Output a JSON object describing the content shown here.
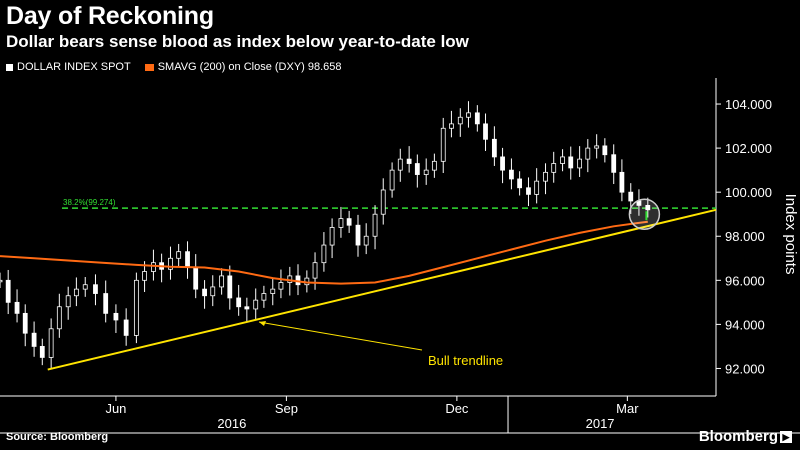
{
  "title": "Day of Reckoning",
  "subtitle": "Dollar bears sense blood as index below year-to-date low",
  "legend": [
    {
      "label": "DOLLAR INDEX SPOT",
      "color": "#ffffff"
    },
    {
      "label": "SMAVG (200) on Close (DXY) 98.658",
      "color": "#ff6a13"
    }
  ],
  "source": "Source: Bloomberg",
  "brand": "Bloomberg",
  "chart_data": {
    "type": "line",
    "ylabel": "Index points",
    "ylim": [
      90.75,
      105.0
    ],
    "y_ticks": [
      92,
      94,
      96,
      98,
      100,
      102,
      104
    ],
    "y_tick_labels": [
      "92.000",
      "94.000",
      "96.000",
      "98.000",
      "100.000",
      "102.000",
      "104.000"
    ],
    "x_range": [
      2016.25,
      2017.3
    ],
    "month_ticks": [
      {
        "label": "Jun",
        "x": 2016.42
      },
      {
        "label": "Sep",
        "x": 2016.67
      },
      {
        "label": "Dec",
        "x": 2016.92
      },
      {
        "label": "Mar",
        "x": 2017.17
      }
    ],
    "year_labels": [
      {
        "label": "2016",
        "x": 2016.59
      },
      {
        "label": "2017",
        "x": 2017.13
      }
    ],
    "series": [
      {
        "name": "DOLLAR INDEX SPOT",
        "color": "#ffffff",
        "style": "candles",
        "x": [
          2016.25,
          2016.262,
          2016.275,
          2016.287,
          2016.3,
          2016.312,
          2016.325,
          2016.337,
          2016.35,
          2016.362,
          2016.375,
          2016.39,
          2016.405,
          2016.42,
          2016.435,
          2016.45,
          2016.462,
          2016.475,
          2016.487,
          2016.5,
          2016.512,
          2016.525,
          2016.537,
          2016.55,
          2016.562,
          2016.575,
          2016.587,
          2016.6,
          2016.612,
          2016.625,
          2016.637,
          2016.65,
          2016.662,
          2016.675,
          2016.687,
          2016.7,
          2016.712,
          2016.725,
          2016.737,
          2016.75,
          2016.762,
          2016.775,
          2016.787,
          2016.8,
          2016.812,
          2016.825,
          2016.837,
          2016.85,
          2016.862,
          2016.875,
          2016.887,
          2016.9,
          2016.912,
          2016.925,
          2016.937,
          2016.95,
          2016.962,
          2016.975,
          2016.987,
          2017.0,
          2017.012,
          2017.025,
          2017.037,
          2017.05,
          2017.062,
          2017.075,
          2017.087,
          2017.1,
          2017.112,
          2017.125,
          2017.137,
          2017.15,
          2017.162,
          2017.175,
          2017.187,
          2017.2
        ],
        "values": [
          96.0,
          95.0,
          94.5,
          93.6,
          93.0,
          92.5,
          93.8,
          94.8,
          95.3,
          95.6,
          95.8,
          95.4,
          94.5,
          94.2,
          93.5,
          96.0,
          96.4,
          96.8,
          96.5,
          97.0,
          97.3,
          96.6,
          95.6,
          95.3,
          95.7,
          96.2,
          95.2,
          94.8,
          94.7,
          95.1,
          95.4,
          95.6,
          95.9,
          96.2,
          95.8,
          96.1,
          96.8,
          97.6,
          98.4,
          98.8,
          98.5,
          97.6,
          98.0,
          99.0,
          100.1,
          101.0,
          101.5,
          101.3,
          100.8,
          101.0,
          101.4,
          102.9,
          103.1,
          103.4,
          103.6,
          103.1,
          102.4,
          101.6,
          101.0,
          100.6,
          100.2,
          99.9,
          100.5,
          100.9,
          101.3,
          101.6,
          101.1,
          101.5,
          102.0,
          102.1,
          101.7,
          100.9,
          100.0,
          99.6,
          99.4,
          99.2
        ]
      },
      {
        "name": "SMAVG (200) on Close (DXY) 98.658",
        "color": "#ff6a13",
        "style": "line",
        "x": [
          2016.25,
          2016.3,
          2016.35,
          2016.4,
          2016.45,
          2016.5,
          2016.55,
          2016.6,
          2016.65,
          2016.7,
          2016.75,
          2016.8,
          2016.85,
          2016.9,
          2016.95,
          2017.0,
          2017.05,
          2017.1,
          2017.15,
          2017.2
        ],
        "values": [
          97.1,
          97.0,
          96.9,
          96.8,
          96.7,
          96.62,
          96.58,
          96.4,
          96.1,
          95.9,
          95.85,
          95.9,
          96.2,
          96.6,
          97.0,
          97.4,
          97.8,
          98.15,
          98.45,
          98.66
        ]
      }
    ],
    "annotations": [
      {
        "type": "hline",
        "y": 99.274,
        "label": "38.2%(99.274)",
        "color": "#33dd33",
        "style": "dashed"
      },
      {
        "type": "trendline",
        "x0": 2016.32,
        "y0": 91.95,
        "x1": 2017.3,
        "y1": 99.2,
        "color": "#ffe400",
        "label": "Bull trendline"
      },
      {
        "type": "circle",
        "x": 2017.195,
        "y": 99.0
      }
    ]
  }
}
